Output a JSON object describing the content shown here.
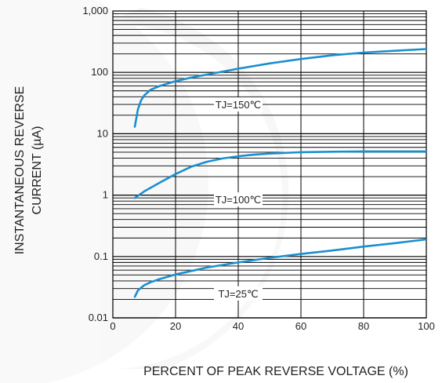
{
  "chart_data": {
    "type": "line",
    "title": "",
    "xlabel": "PERCENT OF PEAK REVERSE VOLTAGE (%)",
    "ylabel_lines": [
      "INSTANTANEOUS REVERSE",
      "CURRENT (µA)"
    ],
    "xlim": [
      0,
      100
    ],
    "ylim": [
      0.01,
      1000
    ],
    "yscale": "log",
    "grid": true,
    "x_ticks": [
      0,
      20,
      40,
      60,
      80,
      100
    ],
    "x_tick_labels": [
      "0",
      "20",
      "40",
      "60",
      "80",
      "100"
    ],
    "y_ticks": [
      0.01,
      0.1,
      1,
      10,
      100,
      1000
    ],
    "y_tick_labels": [
      "0.01",
      "0.1",
      "1",
      "10",
      "100",
      "1,000"
    ],
    "line_color": "#1a8fd0",
    "series": [
      {
        "name": "TJ=150℃",
        "x": [
          7,
          8,
          9,
          10,
          12,
          15,
          20,
          25,
          30,
          40,
          50,
          60,
          70,
          80,
          90,
          100
        ],
        "y": [
          13,
          25,
          35,
          42,
          52,
          60,
          72,
          82,
          92,
          115,
          140,
          165,
          190,
          210,
          225,
          240
        ]
      },
      {
        "name": "TJ=100℃",
        "x": [
          7,
          10,
          15,
          20,
          25,
          30,
          35,
          40,
          45,
          50,
          60,
          70,
          80,
          90,
          100
        ],
        "y": [
          0.9,
          1.15,
          1.6,
          2.2,
          2.9,
          3.5,
          3.95,
          4.3,
          4.55,
          4.75,
          5.0,
          5.1,
          5.15,
          5.15,
          5.15
        ]
      },
      {
        "name": "TJ=25℃",
        "x": [
          7,
          8,
          10,
          12,
          15,
          20,
          25,
          30,
          40,
          50,
          60,
          70,
          80,
          90,
          100
        ],
        "y": [
          0.022,
          0.028,
          0.034,
          0.038,
          0.043,
          0.051,
          0.058,
          0.066,
          0.08,
          0.095,
          0.11,
          0.125,
          0.145,
          0.165,
          0.19
        ]
      }
    ]
  }
}
